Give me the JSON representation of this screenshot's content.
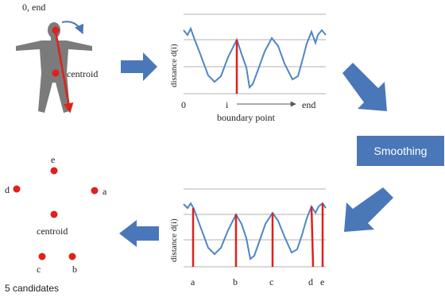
{
  "top_figure": {
    "start_label": "0, end",
    "centroid_label": "centroid"
  },
  "top_graph": {
    "ylabel": "distance  d(i)",
    "x_left": "0",
    "x_mid": "i",
    "x_right": "end",
    "x_caption": "boundary point"
  },
  "smoothing_button": {
    "label": "Smoothing"
  },
  "bottom_graph": {
    "ylabel": "distance  d(i)",
    "ticks": [
      "a",
      "b",
      "c",
      "d",
      "e"
    ]
  },
  "candidates": {
    "points": [
      "e",
      "d",
      "a",
      "c",
      "b"
    ],
    "centroid_label": "centroid",
    "caption": "5 candidates"
  },
  "colors": {
    "arrow_blue": "#4a77b8",
    "curve_blue": "#4f86c6",
    "marker_red": "#e0201c",
    "silhouette_gray": "#7b7b7b"
  }
}
